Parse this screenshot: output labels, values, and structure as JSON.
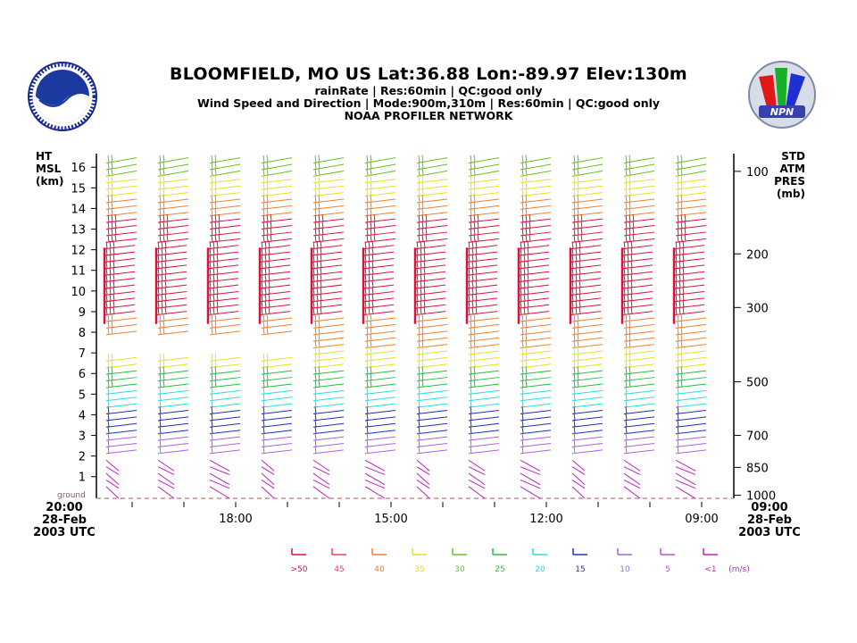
{
  "header": {
    "title": "BLOOMFIELD, MO US  Lat:36.88 Lon:-89.97 Elev:130m",
    "line1": "rainRate | Res:60min |  QC:good only",
    "line2": "Wind Speed and Direction | Mode:900m,310m | Res:60min |  QC:good only",
    "line3": "NOAA PROFILER NETWORK"
  },
  "logos": {
    "left": "noaa-logo",
    "right": "npn-logo"
  },
  "chart_data": {
    "type": "wind-barb time-height",
    "left_axis_label": [
      "HT",
      "MSL",
      "(km)"
    ],
    "right_axis_label": [
      "STD",
      "ATM",
      "PRES",
      "(mb)"
    ],
    "y_ticks": [
      16,
      15,
      14,
      13,
      12,
      11,
      10,
      9,
      8,
      7,
      6,
      5,
      4,
      3,
      2,
      1
    ],
    "ground_label": "ground",
    "pressure_ticks": [
      {
        "mb": "100",
        "km": 15.8
      },
      {
        "mb": "200",
        "km": 11.8
      },
      {
        "mb": "300",
        "km": 9.2
      },
      {
        "mb": "500",
        "km": 5.6
      },
      {
        "mb": "700",
        "km": 3.0
      },
      {
        "mb": "850",
        "km": 1.45
      },
      {
        "mb": "1000",
        "km": 0.1
      }
    ],
    "x_start": [
      "20:00",
      "28-Feb",
      "2003 UTC"
    ],
    "x_end": [
      "09:00",
      "28-Feb",
      "2003 UTC"
    ],
    "x_ticks": [
      "18:00",
      "15:00",
      "12:00",
      "09:00"
    ],
    "profile_count": 12,
    "legend": {
      "labels": [
        ">50",
        "45",
        "40",
        "35",
        "30",
        "25",
        "20",
        "15",
        "10",
        "5",
        "<1",
        "(m/s)"
      ],
      "colors": [
        "#e0103a",
        "#f04060",
        "#f08030",
        "#e8e020",
        "#68c020",
        "#20c040",
        "#20e0e0",
        "#2030c0",
        "#b060e0",
        "#c050d0",
        "#c020c0"
      ]
    }
  }
}
